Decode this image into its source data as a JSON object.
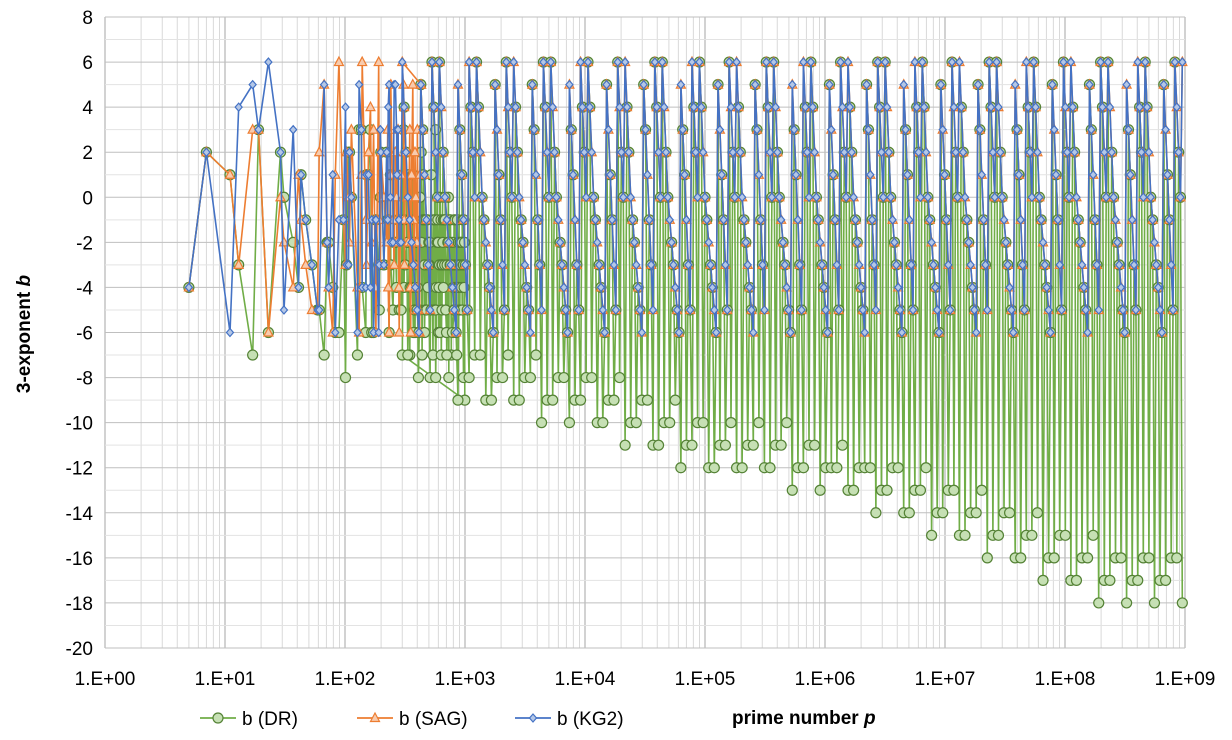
{
  "chart_data": {
    "type": "line",
    "title": "",
    "xlabel_prefix": "prime number",
    "xlabel_var": "p",
    "ylabel_prefix": "3-exponent",
    "ylabel_var": "b",
    "x_scale": "log",
    "xlim": [
      1,
      1000000000
    ],
    "ylim": [
      -20,
      8
    ],
    "y_ticks": [
      -20,
      -18,
      -16,
      -14,
      -12,
      -10,
      -8,
      -6,
      -4,
      -2,
      0,
      2,
      4,
      6,
      8
    ],
    "x_ticks": [
      1,
      10,
      100,
      1000,
      10000,
      100000,
      1000000,
      10000000,
      100000000,
      1000000000
    ],
    "x_tick_labels": [
      "1.E+00",
      "1.E+01",
      "1.E+02",
      "1.E+03",
      "1.E+04",
      "1.E+05",
      "1.E+06",
      "1.E+07",
      "1.E+08",
      "1.E+09"
    ],
    "grid": true,
    "legend_position": "bottom-left",
    "series": [
      {
        "name": "b (DR)",
        "color": "#70ad47",
        "marker": "circle",
        "points": [
          [
            5,
            -4
          ],
          [
            7,
            2
          ],
          [
            11,
            1
          ],
          [
            13,
            -3
          ],
          [
            17,
            -7
          ],
          [
            19,
            3
          ],
          [
            23,
            -6
          ],
          [
            29,
            2
          ],
          [
            31,
            0
          ],
          [
            37,
            -2
          ],
          [
            41,
            -4
          ],
          [
            43,
            1
          ],
          [
            47,
            -1
          ],
          [
            53,
            -3
          ],
          [
            59,
            -5
          ],
          [
            61,
            -5
          ],
          [
            67,
            -7
          ],
          [
            71,
            -2
          ],
          [
            73,
            -2
          ],
          [
            79,
            -4
          ],
          [
            83,
            -6
          ],
          [
            89,
            -6
          ],
          [
            97,
            -1
          ],
          [
            101,
            -8
          ],
          [
            103,
            -3
          ],
          [
            107,
            2
          ],
          [
            109,
            2
          ],
          [
            113,
            0
          ],
          [
            127,
            -7
          ],
          [
            131,
            3
          ],
          [
            137,
            3
          ],
          [
            139,
            -4
          ],
          [
            149,
            -6
          ],
          [
            151,
            1
          ],
          [
            157,
            1
          ],
          [
            163,
            3
          ],
          [
            167,
            -6
          ],
          [
            173,
            -6
          ],
          [
            179,
            -1
          ],
          [
            181,
            -1
          ],
          [
            191,
            -3
          ],
          [
            193,
            -5
          ],
          [
            197,
            0
          ],
          [
            199,
            2
          ],
          [
            211,
            -3
          ],
          [
            223,
            2
          ],
          [
            227,
            -1
          ],
          [
            229,
            -1
          ],
          [
            233,
            -6
          ],
          [
            239,
            1
          ],
          [
            241,
            -3
          ],
          [
            251,
            -5
          ],
          [
            257,
            -2
          ],
          [
            263,
            -2
          ],
          [
            269,
            -4
          ],
          [
            271,
            1
          ],
          [
            277,
            -1
          ],
          [
            281,
            -1
          ],
          [
            283,
            -5
          ],
          [
            293,
            -5
          ],
          [
            307,
            3
          ],
          [
            311,
            -4
          ],
          [
            313,
            -1
          ],
          [
            317,
            -3
          ],
          [
            331,
            -2
          ],
          [
            337,
            1
          ],
          [
            347,
            -7
          ],
          [
            349,
            -4
          ],
          [
            353,
            -1
          ],
          [
            359,
            -4
          ],
          [
            367,
            1
          ],
          [
            373,
            -3
          ],
          [
            379,
            -5
          ],
          [
            383,
            -6
          ],
          [
            389,
            -2
          ],
          [
            397,
            -2
          ],
          [
            401,
            -4
          ],
          [
            409,
            -8
          ],
          [
            419,
            -5
          ],
          [
            421,
            0
          ],
          [
            431,
            2
          ],
          [
            433,
            -2
          ],
          [
            439,
            -7
          ],
          [
            443,
            -1
          ],
          [
            449,
            1
          ],
          [
            457,
            -1
          ],
          [
            461,
            -3
          ],
          [
            463,
            -1
          ],
          [
            467,
            -5
          ],
          [
            479,
            -5
          ],
          [
            487,
            -1
          ],
          [
            491,
            -4
          ],
          [
            499,
            -2
          ],
          [
            503,
            -3
          ],
          [
            509,
            -2
          ],
          [
            521,
            -5
          ],
          [
            523,
            1
          ],
          [
            541,
            -7
          ],
          [
            547,
            -1
          ],
          [
            557,
            -5
          ],
          [
            563,
            -1
          ],
          [
            569,
            3
          ],
          [
            571,
            -5
          ],
          [
            577,
            -4
          ],
          [
            587,
            -2
          ],
          [
            593,
            -1
          ],
          [
            599,
            -2
          ],
          [
            601,
            -6
          ],
          [
            607,
            -4
          ],
          [
            613,
            -3
          ],
          [
            617,
            0
          ],
          [
            619,
            -6
          ],
          [
            631,
            -1
          ],
          [
            641,
            -3
          ],
          [
            643,
            -5
          ],
          [
            647,
            -3
          ],
          [
            653,
            -2
          ],
          [
            659,
            -1
          ],
          [
            661,
            -4
          ],
          [
            673,
            -1
          ],
          [
            677,
            -3
          ],
          [
            683,
            -1
          ],
          [
            691,
            -5
          ],
          [
            701,
            -6
          ],
          [
            709,
            -3
          ],
          [
            719,
            -2
          ],
          [
            727,
            0
          ],
          [
            733,
            -8
          ],
          [
            739,
            -2
          ],
          [
            743,
            -1
          ],
          [
            751,
            -3
          ],
          [
            757,
            -1
          ],
          [
            761,
            -3
          ],
          [
            769,
            -7
          ],
          [
            773,
            -3
          ],
          [
            787,
            -2
          ],
          [
            797,
            -4
          ],
          [
            809,
            -5
          ],
          [
            811,
            -1
          ],
          [
            821,
            -3
          ],
          [
            823,
            -4
          ],
          [
            827,
            -1
          ],
          [
            829,
            -4
          ],
          [
            839,
            -5
          ],
          [
            853,
            -7
          ],
          [
            857,
            -3
          ],
          [
            859,
            -4
          ],
          [
            863,
            -1
          ],
          [
            877,
            -4
          ],
          [
            881,
            -2
          ],
          [
            883,
            -3
          ],
          [
            887,
            -4
          ],
          [
            907,
            -5
          ],
          [
            911,
            -2
          ],
          [
            919,
            -3
          ],
          [
            929,
            -2
          ],
          [
            937,
            -4
          ],
          [
            941,
            -2
          ],
          [
            947,
            -5
          ],
          [
            953,
            -1
          ],
          [
            967,
            -3
          ],
          [
            971,
            -3
          ],
          [
            977,
            -1
          ],
          [
            983,
            -4
          ],
          [
            991,
            -2
          ],
          [
            997,
            -9
          ]
        ]
      },
      {
        "name": "b (SAG)",
        "color": "#ed7d31",
        "marker": "triangle",
        "points": [
          [
            5,
            -4
          ],
          [
            7,
            2
          ],
          [
            11,
            1
          ],
          [
            13,
            -3
          ],
          [
            17,
            3
          ],
          [
            19,
            3
          ],
          [
            23,
            -6
          ],
          [
            29,
            0
          ],
          [
            31,
            -2
          ],
          [
            37,
            -4
          ],
          [
            41,
            1
          ],
          [
            43,
            -1
          ],
          [
            47,
            -3
          ],
          [
            53,
            -5
          ],
          [
            59,
            -5
          ],
          [
            61,
            2
          ],
          [
            67,
            5
          ],
          [
            71,
            -2
          ],
          [
            73,
            -4
          ],
          [
            79,
            -6
          ],
          [
            83,
            1
          ],
          [
            89,
            6
          ],
          [
            97,
            -1
          ],
          [
            101,
            -3
          ],
          [
            103,
            2
          ],
          [
            107,
            0
          ],
          [
            109,
            -2
          ],
          [
            113,
            3
          ],
          [
            127,
            -4
          ],
          [
            131,
            -6
          ],
          [
            137,
            1
          ],
          [
            139,
            6
          ],
          [
            149,
            -1
          ],
          [
            151,
            -3
          ],
          [
            157,
            2
          ],
          [
            163,
            4
          ],
          [
            167,
            -2
          ],
          [
            173,
            3
          ],
          [
            179,
            -4
          ],
          [
            181,
            -6
          ],
          [
            191,
            6
          ],
          [
            193,
            -1
          ],
          [
            197,
            -3
          ],
          [
            199,
            2
          ],
          [
            211,
            0
          ],
          [
            223,
            -2
          ],
          [
            227,
            3
          ],
          [
            229,
            -4
          ],
          [
            233,
            -6
          ],
          [
            239,
            1
          ],
          [
            241,
            5
          ],
          [
            251,
            -1
          ],
          [
            257,
            -3
          ],
          [
            263,
            2
          ],
          [
            269,
            0
          ],
          [
            271,
            -2
          ],
          [
            277,
            3
          ],
          [
            281,
            -4
          ],
          [
            283,
            -6
          ],
          [
            293,
            1
          ],
          [
            307,
            5
          ],
          [
            311,
            -1
          ],
          [
            313,
            -3
          ],
          [
            317,
            2
          ],
          [
            331,
            0
          ],
          [
            337,
            -2
          ],
          [
            347,
            3
          ],
          [
            349,
            -4
          ],
          [
            353,
            -6
          ],
          [
            359,
            1
          ],
          [
            367,
            5
          ],
          [
            373,
            -1
          ],
          [
            379,
            -3
          ],
          [
            383,
            2
          ],
          [
            389,
            0
          ],
          [
            397,
            -2
          ],
          [
            401,
            3
          ],
          [
            409,
            -5
          ],
          [
            419,
            -6
          ],
          [
            421,
            1
          ],
          [
            431,
            5
          ]
        ]
      },
      {
        "name": "b (KG2)",
        "color": "#4472c4",
        "marker": "diamond",
        "points": [
          [
            5,
            -4
          ],
          [
            7,
            2
          ],
          [
            11,
            -6
          ],
          [
            13,
            4
          ],
          [
            17,
            5
          ],
          [
            19,
            3
          ],
          [
            23,
            6
          ],
          [
            29,
            2
          ],
          [
            31,
            -5
          ],
          [
            37,
            3
          ],
          [
            41,
            -4
          ],
          [
            43,
            1
          ],
          [
            47,
            -1
          ],
          [
            53,
            -3
          ],
          [
            59,
            -5
          ],
          [
            61,
            -5
          ],
          [
            67,
            5
          ],
          [
            71,
            -2
          ],
          [
            73,
            -4
          ],
          [
            79,
            1
          ],
          [
            83,
            -6
          ],
          [
            89,
            -1
          ],
          [
            97,
            -1
          ],
          [
            101,
            4
          ],
          [
            103,
            -3
          ],
          [
            107,
            -3
          ],
          [
            109,
            2
          ],
          [
            113,
            0
          ],
          [
            127,
            -6
          ],
          [
            131,
            5
          ],
          [
            137,
            3
          ],
          [
            139,
            -4
          ],
          [
            149,
            -4
          ],
          [
            151,
            1
          ],
          [
            157,
            1
          ],
          [
            163,
            -4
          ],
          [
            167,
            -1
          ],
          [
            173,
            -6
          ],
          [
            179,
            -1
          ],
          [
            181,
            -1
          ],
          [
            191,
            -6
          ],
          [
            193,
            -3
          ],
          [
            197,
            3
          ],
          [
            199,
            2
          ],
          [
            211,
            -3
          ],
          [
            223,
            2
          ],
          [
            227,
            -1
          ],
          [
            229,
            4
          ],
          [
            233,
            5
          ],
          [
            239,
            0
          ],
          [
            241,
            -2
          ],
          [
            251,
            -2
          ],
          [
            257,
            5
          ],
          [
            263,
            5
          ],
          [
            269,
            3
          ],
          [
            271,
            1
          ],
          [
            277,
            3
          ],
          [
            281,
            -1
          ],
          [
            283,
            -2
          ],
          [
            293,
            -2
          ]
        ]
      }
    ],
    "dense_pattern": {
      "start_p": 300,
      "end_p": 950000000,
      "kg2_values": [
        6,
        4,
        2,
        0,
        -1,
        -2,
        -3,
        -4,
        -5,
        -6,
        5,
        3,
        1,
        -1,
        -3,
        -5,
        6,
        4,
        2,
        0
      ],
      "dr_min_envelope": [
        [
          300,
          -7
        ],
        [
          1000,
          -9
        ],
        [
          10000,
          -10
        ],
        [
          100000,
          -12
        ],
        [
          1000000,
          -13
        ],
        [
          10000000,
          -15
        ],
        [
          100000000,
          -17
        ],
        [
          300000000,
          -18
        ],
        [
          950000000,
          -18
        ]
      ]
    }
  }
}
